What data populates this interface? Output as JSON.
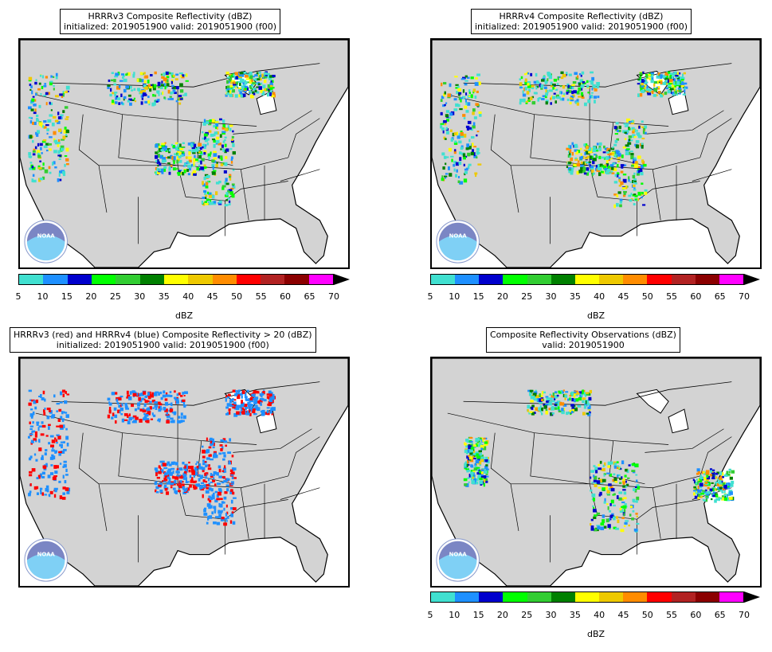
{
  "panels": [
    {
      "title_line1": "HRRRv3 Composite Reflectivity (dBZ)",
      "title_line2": "initialized: 2019051900 valid: 2019051900 (f00)"
    },
    {
      "title_line1": "HRRRv4 Composite Reflectivity (dBZ)",
      "title_line2": "initialized: 2019051900 valid: 2019051900 (f00)"
    },
    {
      "title_line1": "HRRRv3 (red) and HRRRv4 (blue) Composite Reflectivity > 20 (dBZ)",
      "title_line2": "initialized: 2019051900 valid: 2019051900 (f00)"
    },
    {
      "title_line1": "Composite Reflectivity Observations (dBZ)",
      "title_line2": "valid: 2019051900"
    }
  ],
  "colorbar": {
    "ticks": [
      "5",
      "10",
      "15",
      "20",
      "25",
      "30",
      "35",
      "40",
      "45",
      "50",
      "55",
      "60",
      "65",
      "70"
    ],
    "unit": "dBZ",
    "colors": [
      "#40e0d0",
      "#1e90ff",
      "#0000cd",
      "#00ff00",
      "#32cd32",
      "#008000",
      "#ffff00",
      "#eec900",
      "#ff8c00",
      "#ff0000",
      "#b22222",
      "#8b0000",
      "#ff00ff"
    ]
  },
  "logo_text": "NOAA",
  "colors": {
    "land": "#d3d3d3",
    "water": "#ffffff",
    "diff_v3": "#ff0000",
    "diff_v4": "#1e90ff"
  }
}
